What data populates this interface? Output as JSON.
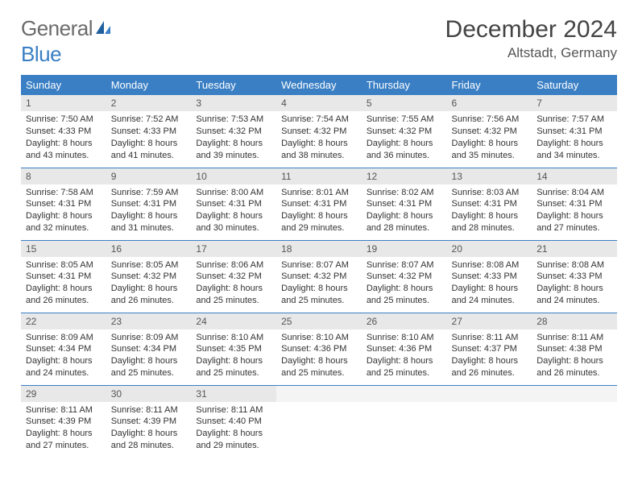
{
  "logo": {
    "part1": "General",
    "part2": "Blue"
  },
  "title": "December 2024",
  "location": "Altstadt, Germany",
  "colors": {
    "header_bg": "#3a7fc4",
    "header_fg": "#ffffff",
    "daynum_bg": "#e8e8e8",
    "border": "#3a7fc4",
    "text": "#333333"
  },
  "weekdays": [
    "Sunday",
    "Monday",
    "Tuesday",
    "Wednesday",
    "Thursday",
    "Friday",
    "Saturday"
  ],
  "days": [
    {
      "n": 1,
      "sunrise": "7:50 AM",
      "sunset": "4:33 PM",
      "daylight": "8 hours and 43 minutes."
    },
    {
      "n": 2,
      "sunrise": "7:52 AM",
      "sunset": "4:33 PM",
      "daylight": "8 hours and 41 minutes."
    },
    {
      "n": 3,
      "sunrise": "7:53 AM",
      "sunset": "4:32 PM",
      "daylight": "8 hours and 39 minutes."
    },
    {
      "n": 4,
      "sunrise": "7:54 AM",
      "sunset": "4:32 PM",
      "daylight": "8 hours and 38 minutes."
    },
    {
      "n": 5,
      "sunrise": "7:55 AM",
      "sunset": "4:32 PM",
      "daylight": "8 hours and 36 minutes."
    },
    {
      "n": 6,
      "sunrise": "7:56 AM",
      "sunset": "4:32 PM",
      "daylight": "8 hours and 35 minutes."
    },
    {
      "n": 7,
      "sunrise": "7:57 AM",
      "sunset": "4:31 PM",
      "daylight": "8 hours and 34 minutes."
    },
    {
      "n": 8,
      "sunrise": "7:58 AM",
      "sunset": "4:31 PM",
      "daylight": "8 hours and 32 minutes."
    },
    {
      "n": 9,
      "sunrise": "7:59 AM",
      "sunset": "4:31 PM",
      "daylight": "8 hours and 31 minutes."
    },
    {
      "n": 10,
      "sunrise": "8:00 AM",
      "sunset": "4:31 PM",
      "daylight": "8 hours and 30 minutes."
    },
    {
      "n": 11,
      "sunrise": "8:01 AM",
      "sunset": "4:31 PM",
      "daylight": "8 hours and 29 minutes."
    },
    {
      "n": 12,
      "sunrise": "8:02 AM",
      "sunset": "4:31 PM",
      "daylight": "8 hours and 28 minutes."
    },
    {
      "n": 13,
      "sunrise": "8:03 AM",
      "sunset": "4:31 PM",
      "daylight": "8 hours and 28 minutes."
    },
    {
      "n": 14,
      "sunrise": "8:04 AM",
      "sunset": "4:31 PM",
      "daylight": "8 hours and 27 minutes."
    },
    {
      "n": 15,
      "sunrise": "8:05 AM",
      "sunset": "4:31 PM",
      "daylight": "8 hours and 26 minutes."
    },
    {
      "n": 16,
      "sunrise": "8:05 AM",
      "sunset": "4:32 PM",
      "daylight": "8 hours and 26 minutes."
    },
    {
      "n": 17,
      "sunrise": "8:06 AM",
      "sunset": "4:32 PM",
      "daylight": "8 hours and 25 minutes."
    },
    {
      "n": 18,
      "sunrise": "8:07 AM",
      "sunset": "4:32 PM",
      "daylight": "8 hours and 25 minutes."
    },
    {
      "n": 19,
      "sunrise": "8:07 AM",
      "sunset": "4:32 PM",
      "daylight": "8 hours and 25 minutes."
    },
    {
      "n": 20,
      "sunrise": "8:08 AM",
      "sunset": "4:33 PM",
      "daylight": "8 hours and 24 minutes."
    },
    {
      "n": 21,
      "sunrise": "8:08 AM",
      "sunset": "4:33 PM",
      "daylight": "8 hours and 24 minutes."
    },
    {
      "n": 22,
      "sunrise": "8:09 AM",
      "sunset": "4:34 PM",
      "daylight": "8 hours and 24 minutes."
    },
    {
      "n": 23,
      "sunrise": "8:09 AM",
      "sunset": "4:34 PM",
      "daylight": "8 hours and 25 minutes."
    },
    {
      "n": 24,
      "sunrise": "8:10 AM",
      "sunset": "4:35 PM",
      "daylight": "8 hours and 25 minutes."
    },
    {
      "n": 25,
      "sunrise": "8:10 AM",
      "sunset": "4:36 PM",
      "daylight": "8 hours and 25 minutes."
    },
    {
      "n": 26,
      "sunrise": "8:10 AM",
      "sunset": "4:36 PM",
      "daylight": "8 hours and 25 minutes."
    },
    {
      "n": 27,
      "sunrise": "8:11 AM",
      "sunset": "4:37 PM",
      "daylight": "8 hours and 26 minutes."
    },
    {
      "n": 28,
      "sunrise": "8:11 AM",
      "sunset": "4:38 PM",
      "daylight": "8 hours and 26 minutes."
    },
    {
      "n": 29,
      "sunrise": "8:11 AM",
      "sunset": "4:39 PM",
      "daylight": "8 hours and 27 minutes."
    },
    {
      "n": 30,
      "sunrise": "8:11 AM",
      "sunset": "4:39 PM",
      "daylight": "8 hours and 28 minutes."
    },
    {
      "n": 31,
      "sunrise": "8:11 AM",
      "sunset": "4:40 PM",
      "daylight": "8 hours and 29 minutes."
    }
  ],
  "labels": {
    "sunrise": "Sunrise:",
    "sunset": "Sunset:",
    "daylight": "Daylight:"
  }
}
